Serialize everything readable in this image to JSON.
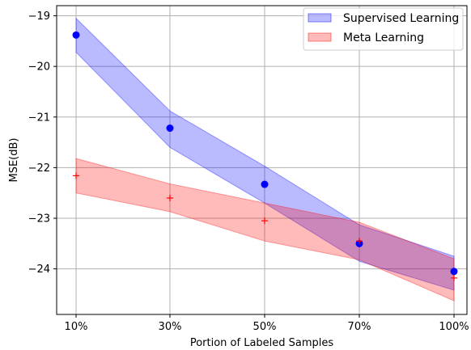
{
  "chart_data": {
    "type": "line",
    "xlabel": "Portion of Labeled Samples",
    "ylabel": "MSE(dB)",
    "categories": [
      "10%",
      "30%",
      "50%",
      "70%",
      "100%"
    ],
    "ylim": [
      -24.9,
      -18.8
    ],
    "yticks": [
      -19,
      -20,
      -21,
      -22,
      -23,
      -24
    ],
    "ytick_labels": [
      "−19",
      "−20",
      "−21",
      "−22",
      "−23",
      "−24"
    ],
    "grid": true,
    "legend_position": "top-right",
    "series": [
      {
        "name": "Supervised Learning",
        "marker": "circle",
        "marker_color": "#0000ff",
        "band_color": "#0000ff",
        "values": [
          -19.38,
          -21.22,
          -22.33,
          -23.5,
          -24.05
        ],
        "lower": [
          -19.72,
          -21.6,
          -22.7,
          -23.85,
          -24.42
        ],
        "upper": [
          -19.05,
          -20.88,
          -21.97,
          -23.13,
          -23.75
        ]
      },
      {
        "name": "Meta Learning",
        "marker": "plus",
        "marker_color": "#ff0000",
        "band_color": "#ff0000",
        "values": [
          -22.16,
          -22.6,
          -23.05,
          -23.45,
          -24.18
        ],
        "lower": [
          -22.5,
          -22.87,
          -23.45,
          -23.82,
          -24.63
        ],
        "upper": [
          -21.82,
          -22.32,
          -22.7,
          -23.08,
          -23.8
        ]
      }
    ]
  }
}
